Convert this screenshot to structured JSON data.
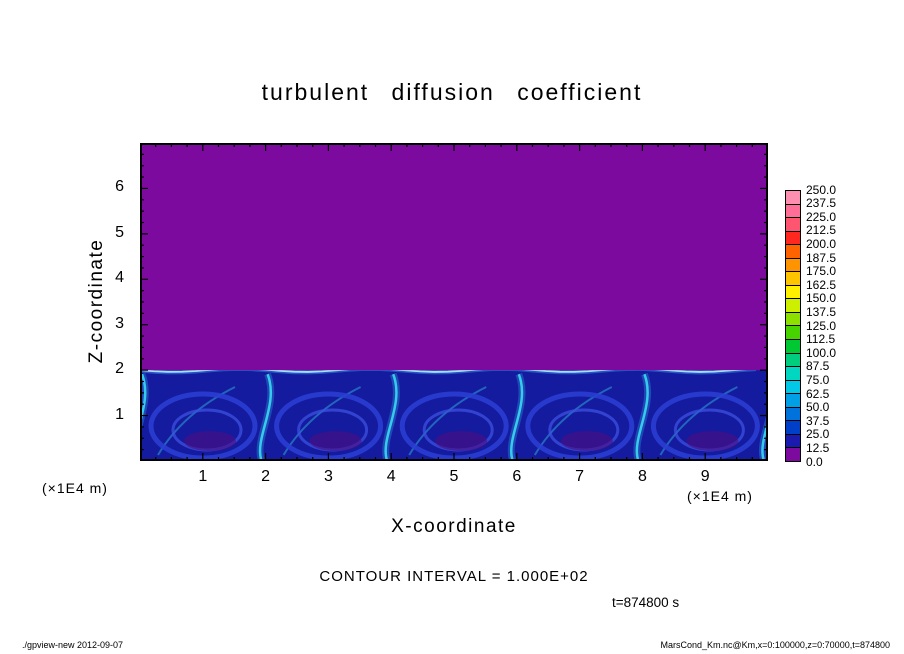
{
  "chart_data": {
    "type": "heatmap",
    "title": "turbulent diffusion coefficient",
    "xlabel": "X-coordinate",
    "ylabel": "Z-coordinate",
    "x_axis_unit": "(×1E4 m)",
    "y_axis_unit": "(×1E4 m)",
    "xlim": [
      0,
      10
    ],
    "ylim": [
      0,
      7
    ],
    "x_ticks": [
      1,
      2,
      3,
      4,
      5,
      6,
      7,
      8,
      9
    ],
    "y_ticks": [
      1,
      2,
      3,
      4,
      5,
      6
    ],
    "contour_interval_label": "CONTOUR INTERVAL = 1.000E+02",
    "time_label": "t=874800 s",
    "colorbar": {
      "levels": [
        "250.0",
        "237.5",
        "225.0",
        "212.5",
        "200.0",
        "187.5",
        "175.0",
        "162.5",
        "150.0",
        "137.5",
        "125.0",
        "112.5",
        "100.0",
        "87.5",
        "75.0",
        "62.5",
        "50.0",
        "37.5",
        "25.0",
        "12.5",
        "0.0"
      ],
      "colors_top_to_bottom": [
        "#ff8fb0",
        "#ff6e96",
        "#ff5570",
        "#ff2820",
        "#ff6300",
        "#ff9400",
        "#ffc400",
        "#fff000",
        "#ccf000",
        "#8ce000",
        "#46d300",
        "#00c832",
        "#00cd7d",
        "#00d6c0",
        "#00c8e6",
        "#009fe6",
        "#0072dc",
        "#0040c8",
        "#1a1aae",
        "#7d0a9e"
      ]
    },
    "plot_colors": {
      "upper_fill": "#7d0a9e",
      "layer_base": "#141b9e"
    },
    "field_summary": {
      "upper_region": "z > 2 (x1E4 m): uniform lowest bin 0.0-12.5 (purple)",
      "lower_region": "z < 2 (x1E4 m): turbulent convective layer, values ~12.5-100, about 5 convection cells with cyan plumes and dark cores"
    }
  },
  "footer": {
    "left": "./gpview-new  2012-09-07",
    "right": "MarsCond_Km.nc@Km,x=0:100000,z=0:70000,t=874800"
  }
}
